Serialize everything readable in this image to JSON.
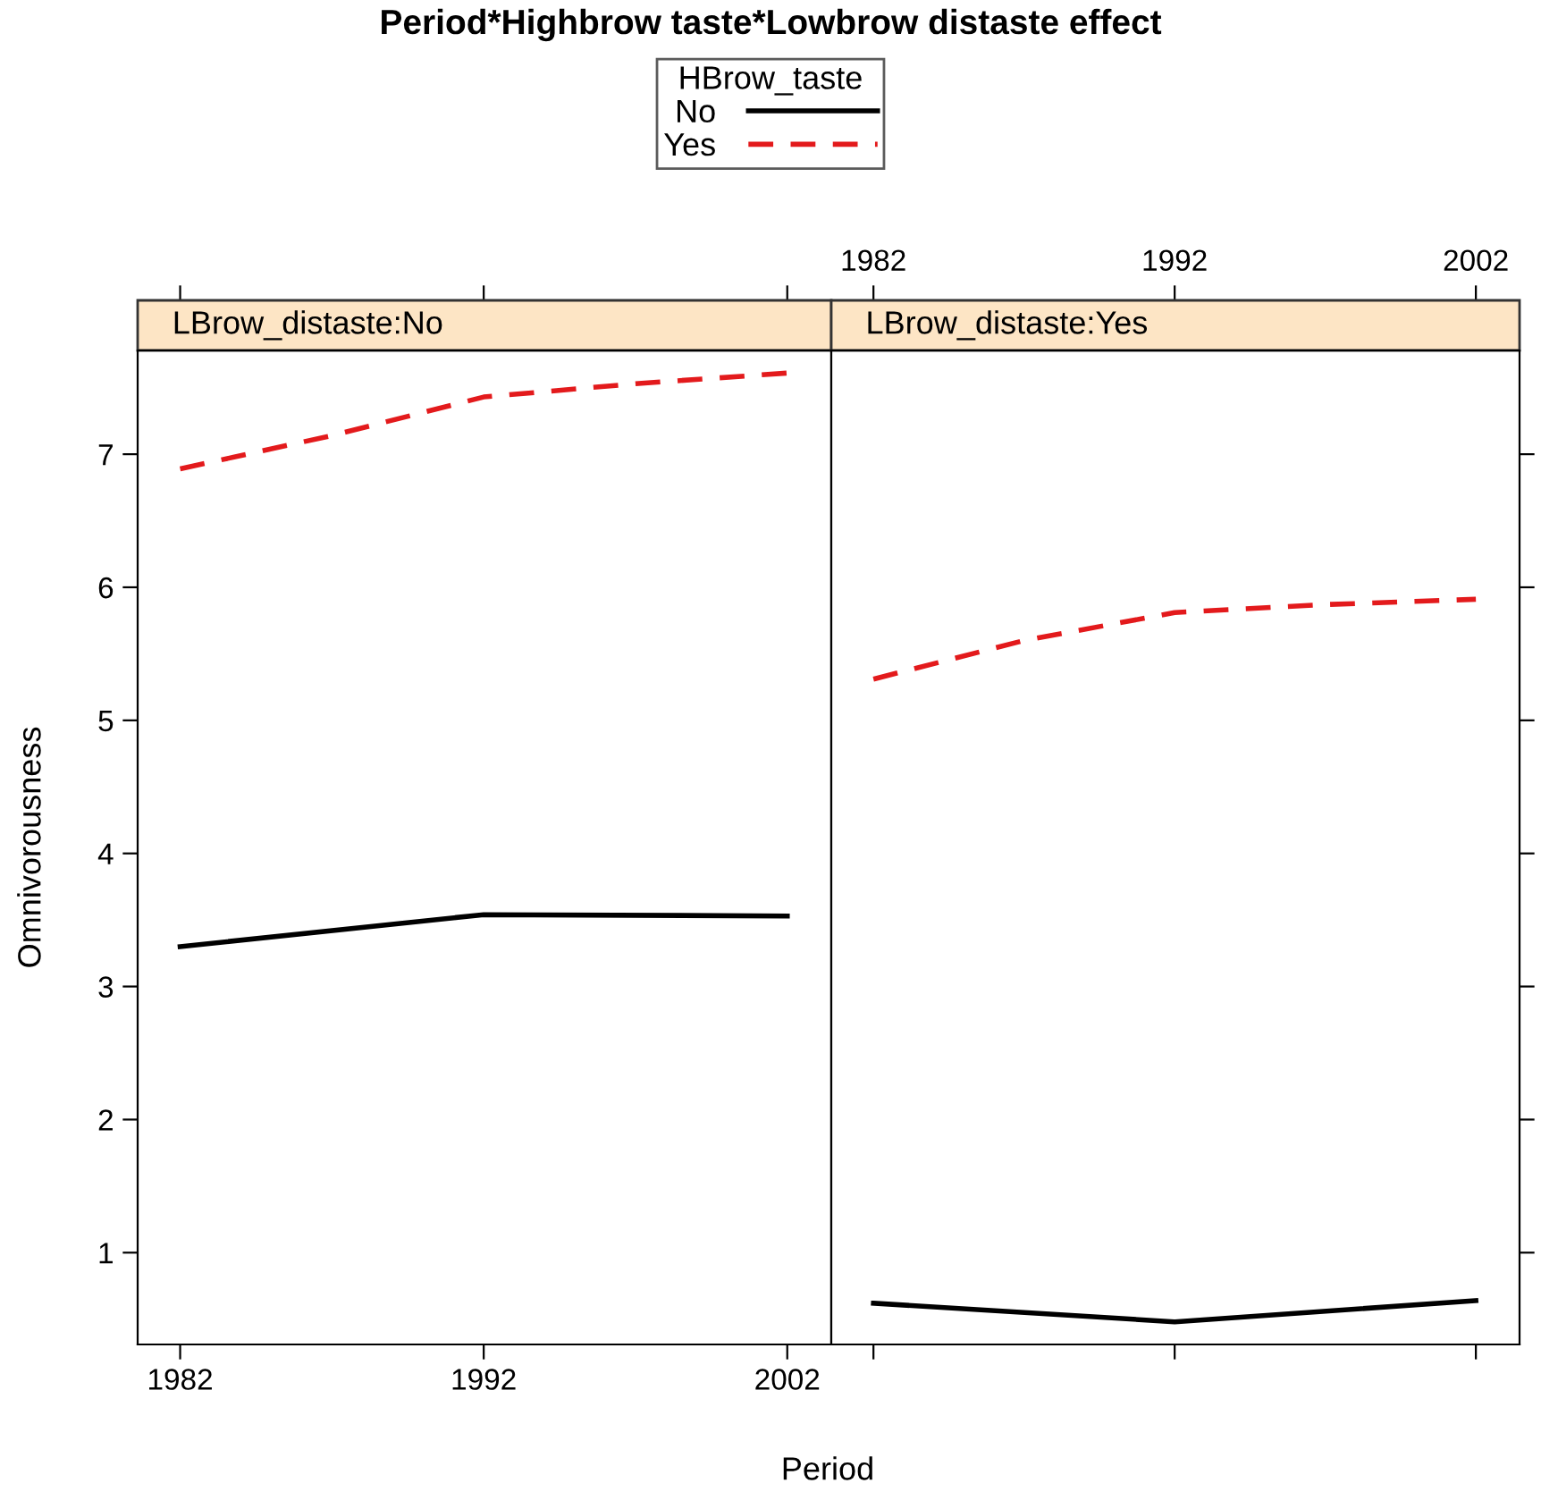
{
  "chart_data": [
    {
      "type": "line",
      "title": "Period*Highbrow taste*Lowbrow distaste effect",
      "subtitle": "LBrow_distaste:No",
      "xlabel": "Period",
      "ylabel": "Omnivorousness",
      "legend_title": "HBrow_taste",
      "legend": "top",
      "xlim": [
        1980.6,
        2003.45
      ],
      "xticks": [
        1982,
        1992,
        2002
      ],
      "ylim": [
        0.31,
        7.78
      ],
      "yticks": [
        1,
        2,
        3,
        4,
        5,
        6,
        7
      ],
      "grid": false,
      "series": [
        {
          "name": "No",
          "color": "#000000",
          "line_style": "solid",
          "x": [
            1982,
            1992,
            2002
          ],
          "values": [
            3.3,
            3.54,
            3.53
          ]
        },
        {
          "name": "Yes",
          "color": "#e31a1c",
          "line_style": "dashed",
          "x": [
            1982,
            1987,
            1992,
            1997,
            2002
          ],
          "values": [
            6.89,
            7.14,
            7.43,
            7.53,
            7.61
          ]
        }
      ]
    },
    {
      "type": "line",
      "subtitle": "LBrow_distaste:Yes",
      "tick_labels": "x",
      "xlim": [
        1980.6,
        2003.45
      ],
      "xticks": [
        1982,
        1992,
        2002
      ],
      "ylim": [
        0.31,
        7.78
      ],
      "yticks": [
        1,
        2,
        3,
        4,
        5,
        6,
        7
      ],
      "grid": false,
      "series": [
        {
          "color": "#000000",
          "line_style": "solid",
          "x": [
            1982,
            1992,
            2002
          ],
          "values": [
            0.62,
            0.48,
            0.64
          ]
        },
        {
          "color": "#e31a1c",
          "line_style": "dashed",
          "x": [
            1982,
            1987,
            1992,
            1997,
            2002
          ],
          "values": [
            5.31,
            5.6,
            5.81,
            5.87,
            5.91
          ]
        }
      ]
    }
  ]
}
